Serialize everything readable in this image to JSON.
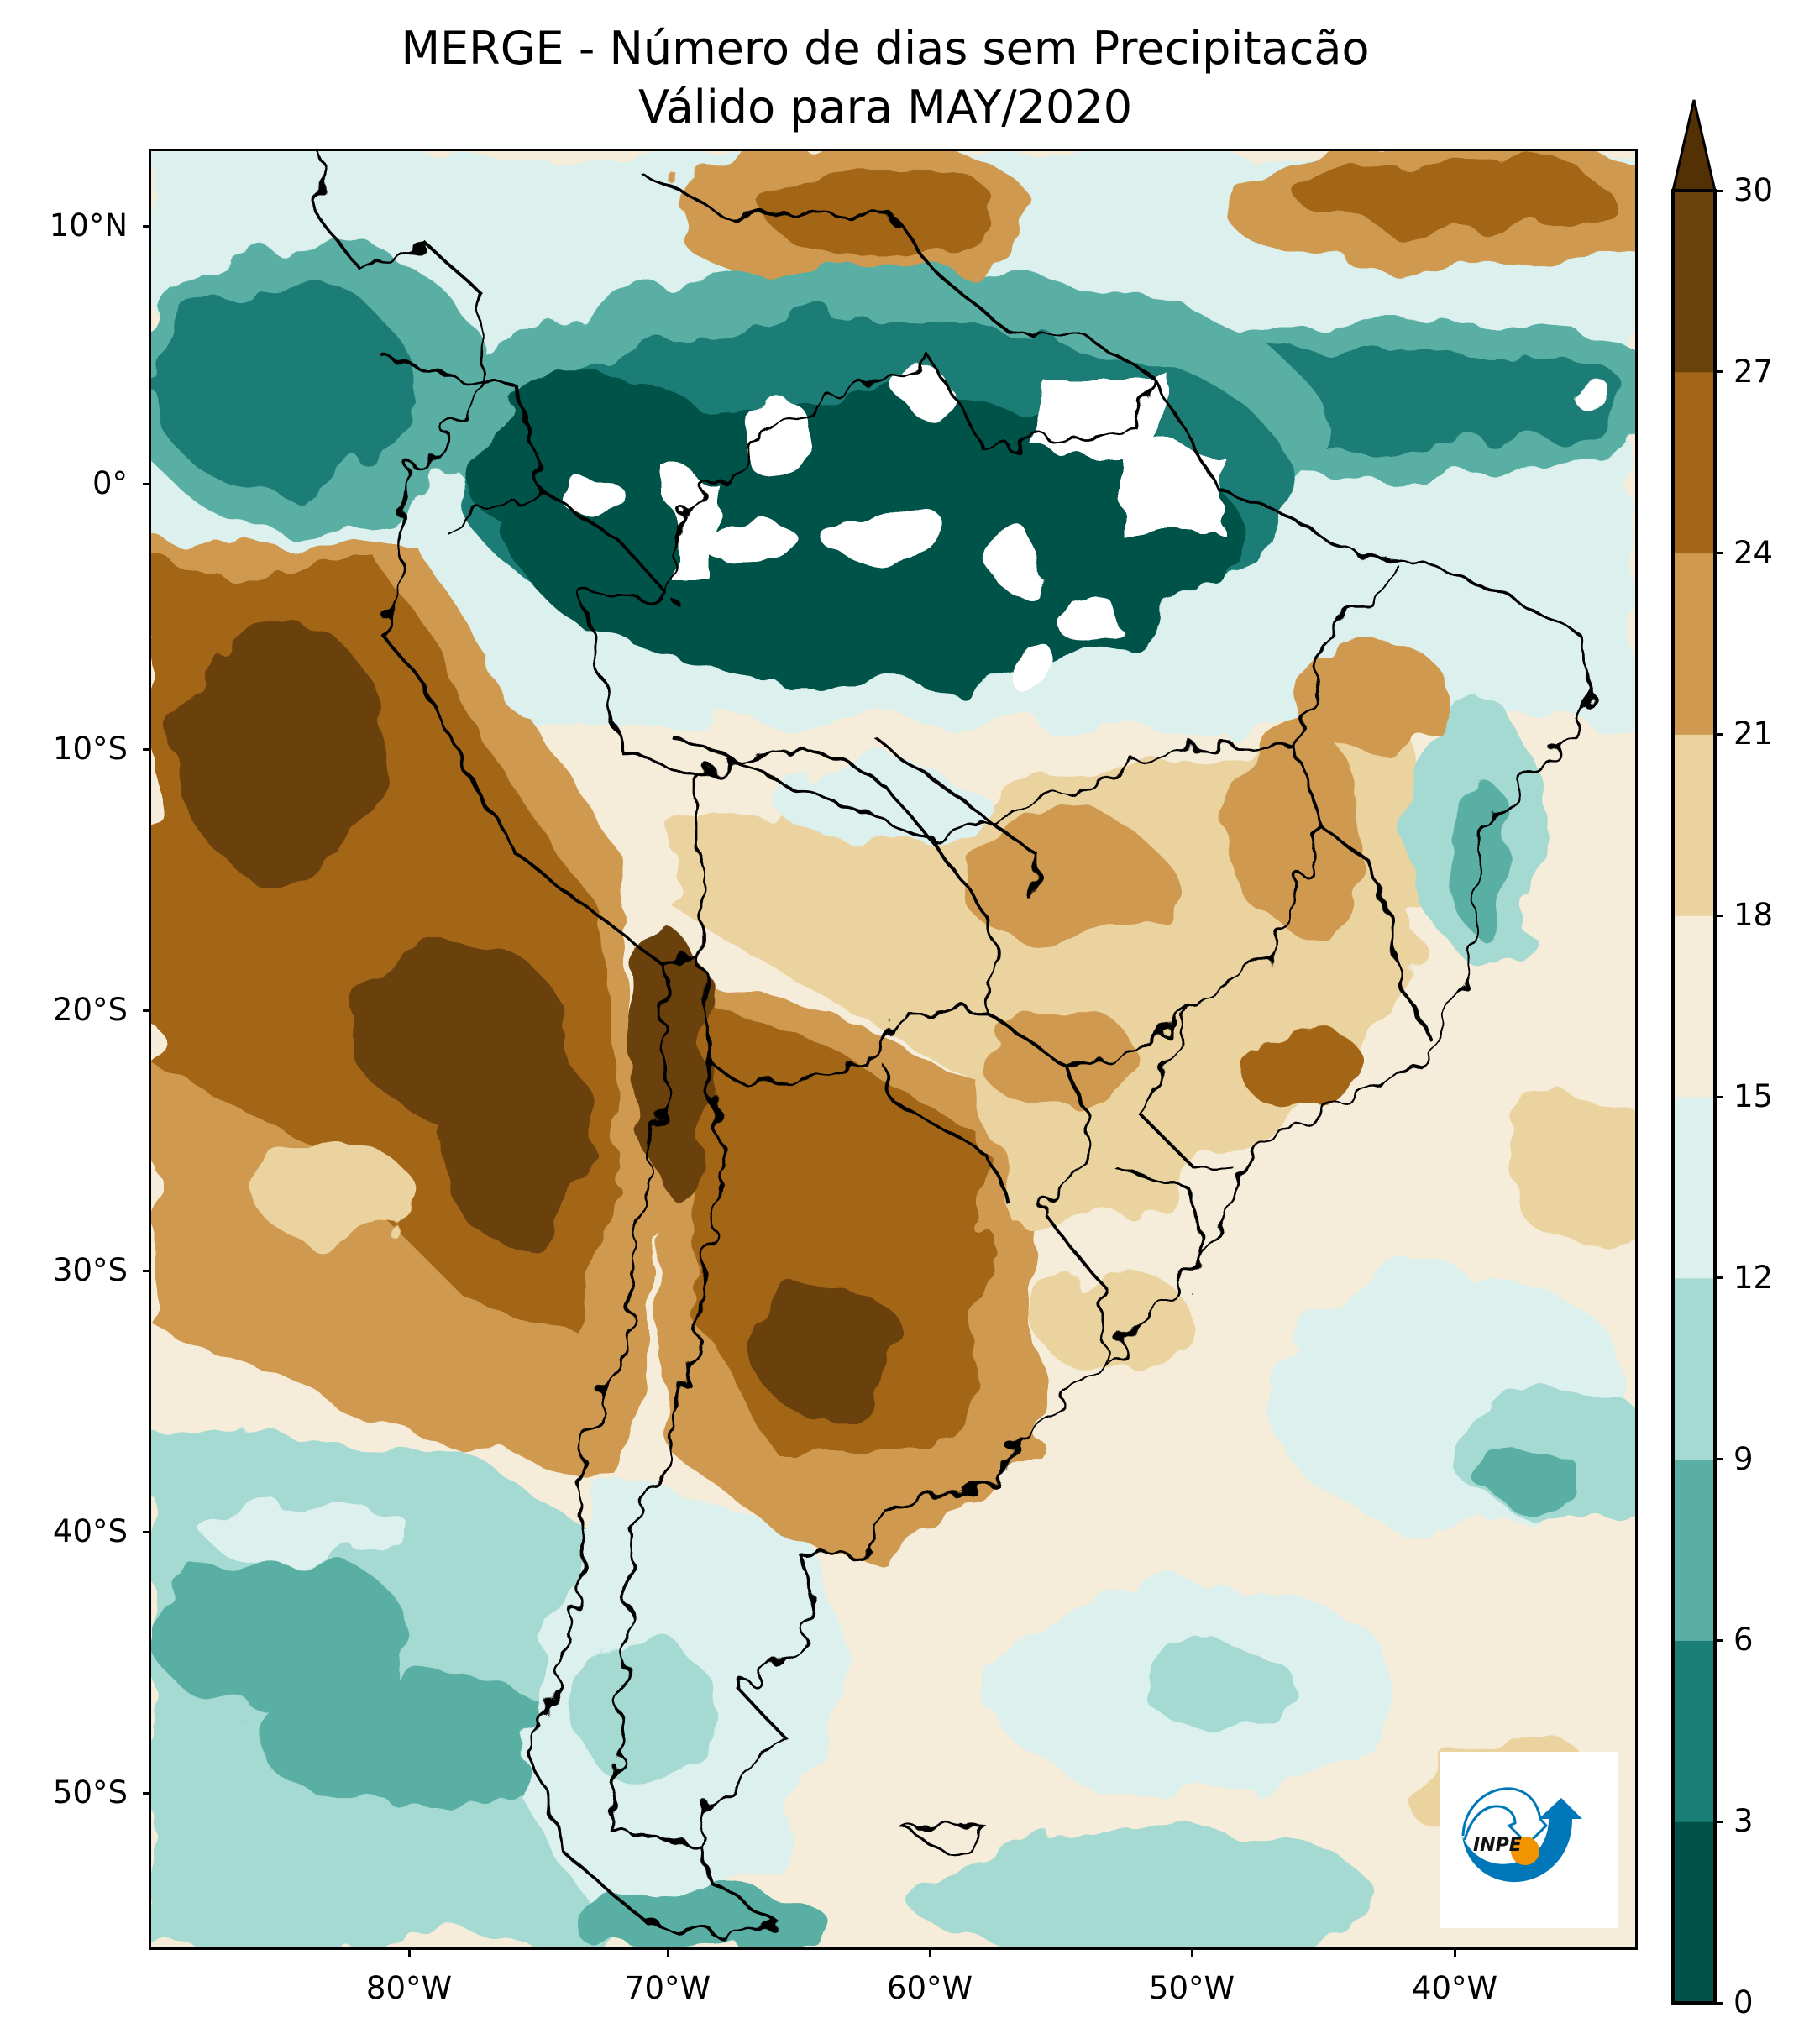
{
  "title": {
    "line1": "MERGE - Número de dias sem Precipitacão",
    "line2": "Válido para MAY/2020"
  },
  "axes": {
    "lat_labels": [
      "10°N",
      "0°",
      "10°S",
      "20°S",
      "30°S",
      "40°S",
      "50°S"
    ],
    "lon_labels": [
      "80°W",
      "70°W",
      "60°W",
      "50°W",
      "40°W"
    ]
  },
  "colorbar": {
    "tick_labels": [
      "0",
      "3",
      "6",
      "9",
      "12",
      "15",
      "18",
      "21",
      "24",
      "27",
      "30"
    ],
    "levels": [
      0,
      3,
      6,
      9,
      12,
      15,
      18,
      21,
      24,
      27,
      30
    ],
    "colors": [
      "#00524a",
      "#1a7d76",
      "#5aafa5",
      "#a4dad2",
      "#dcf0ee",
      "#f5ecda",
      "#ebd39f",
      "#cf9a4f",
      "#a36517",
      "#6b410c"
    ],
    "extend_color": "#543005",
    "extend": "max"
  },
  "logo": {
    "text": "INPE"
  }
}
